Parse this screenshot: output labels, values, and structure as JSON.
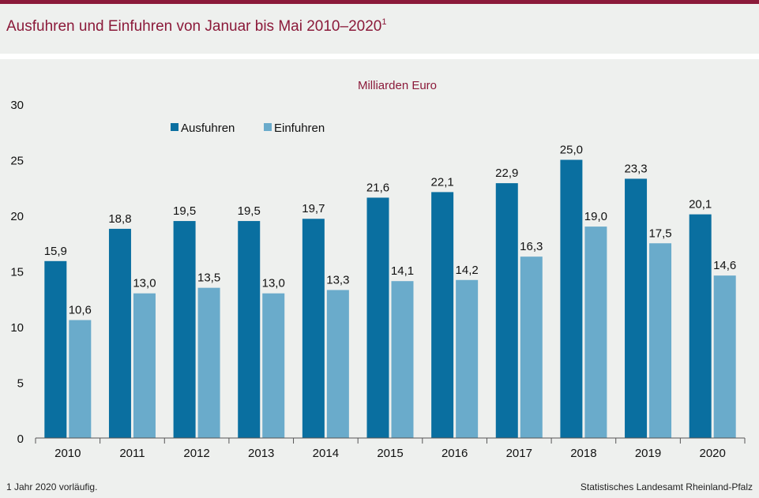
{
  "title": "Ausfuhren und Einfuhren von Januar bis Mai 2010–2020",
  "title_note": "1",
  "footnote": "1 Jahr 2020 vorläufig.",
  "source": "Statistisches Landesamt Rheinland-Pfalz",
  "chart_data": {
    "type": "bar",
    "unit": "Milliarden Euro",
    "categories": [
      "2010",
      "2011",
      "2012",
      "2013",
      "2014",
      "2015",
      "2016",
      "2017",
      "2018",
      "2019",
      "2020"
    ],
    "series": [
      {
        "name": "Ausfuhren",
        "color": "#0a6fa0",
        "values": [
          15.9,
          18.8,
          19.5,
          19.5,
          19.7,
          21.6,
          22.1,
          22.9,
          25.0,
          23.3,
          20.1
        ],
        "labels": [
          "15,9",
          "18,8",
          "19,5",
          "19,5",
          "19,7",
          "21,6",
          "22,1",
          "22,9",
          "25,0",
          "23,3",
          "20,1"
        ]
      },
      {
        "name": "Einfuhren",
        "color": "#6aabcb",
        "values": [
          10.6,
          13.0,
          13.5,
          13.0,
          13.3,
          14.1,
          14.2,
          16.3,
          19.0,
          17.5,
          14.6
        ],
        "labels": [
          "10,6",
          "13,0",
          "13,5",
          "13,0",
          "13,3",
          "14,1",
          "14,2",
          "16,3",
          "19,0",
          "17,5",
          "14,6"
        ]
      }
    ],
    "ylim": [
      0,
      30
    ],
    "yticks": [
      "0",
      "5",
      "10",
      "15",
      "20",
      "25",
      "30"
    ],
    "legend_position": "top-left",
    "grid": false
  }
}
